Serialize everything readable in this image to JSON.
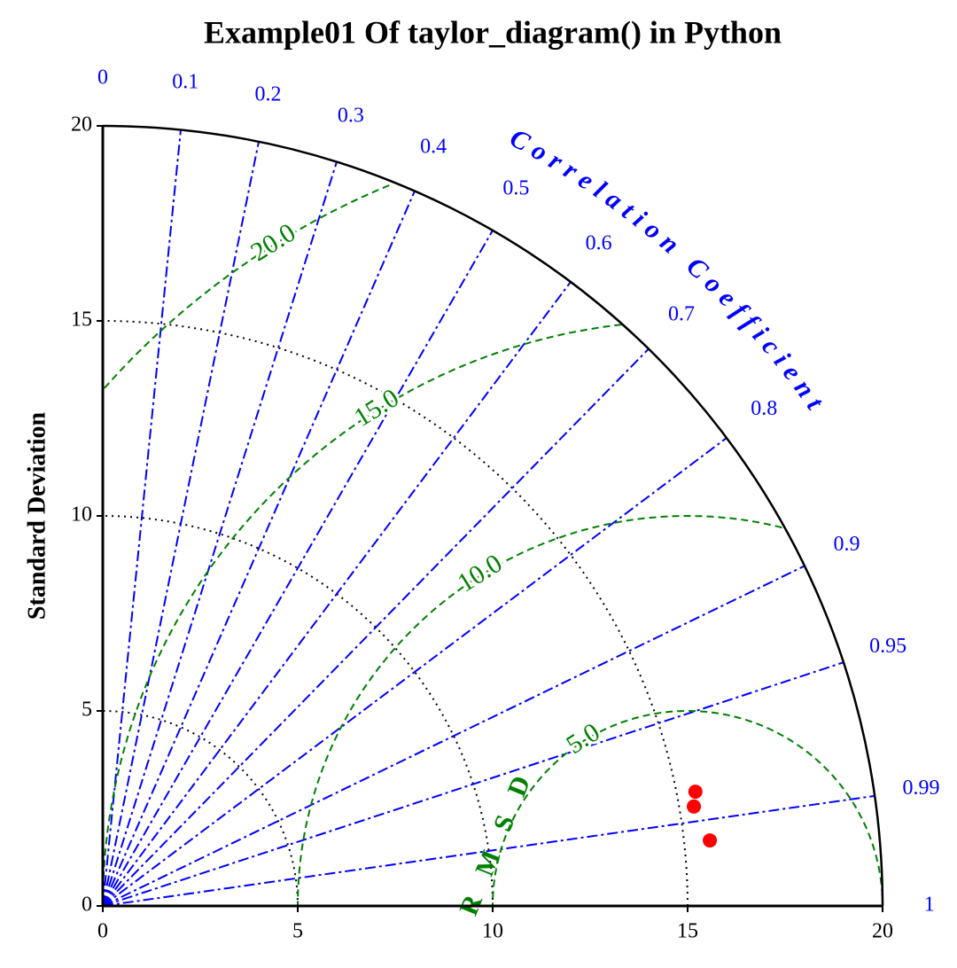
{
  "chart_data": {
    "type": "taylor",
    "title": "Example01 Of taylor_diagram() in Python",
    "ylabel": "Standard Deviation",
    "corr_label": "Correlation Coefficient",
    "rmsd_label": "RMSD",
    "xlim": [
      0,
      20
    ],
    "ylim": [
      0,
      20
    ],
    "xticks": [
      0,
      5,
      10,
      15,
      20
    ],
    "yticks": [
      0,
      5,
      10,
      15,
      20
    ],
    "grid": true,
    "corr_ticks": [
      0,
      0.1,
      0.2,
      0.3,
      0.4,
      0.5,
      0.6,
      0.7,
      0.8,
      0.9,
      0.95,
      0.99,
      1
    ],
    "corr_color": "#0000ff",
    "reference_std": 15,
    "rmsd_contours": [
      {
        "value": 5,
        "label": "5.0"
      },
      {
        "value": 10,
        "label": "10.0"
      },
      {
        "value": 15,
        "label": "15.0"
      },
      {
        "value": 20,
        "label": "20.0"
      }
    ],
    "rmsd_color": "#008000",
    "points": {
      "x": [
        15.2,
        15.16,
        15.57
      ],
      "y": [
        2.93,
        2.55,
        1.68
      ],
      "color": "#ff0000"
    }
  }
}
